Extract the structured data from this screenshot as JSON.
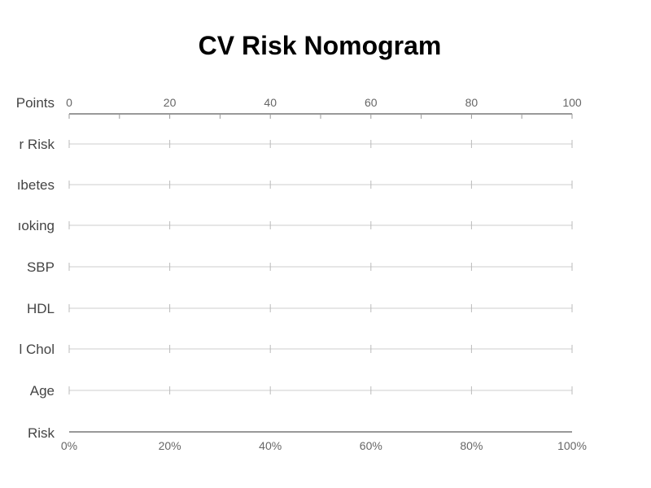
{
  "chart_data": {
    "type": "nomogram",
    "title": "CV Risk Nomogram",
    "points_scale": {
      "label": "Points",
      "range": [
        0,
        100
      ],
      "major_ticks": [
        0,
        20,
        40,
        60,
        80,
        100
      ],
      "minor_tick_step": 10
    },
    "predictors": [
      {
        "label": "r Risk",
        "range": [
          0,
          100
        ]
      },
      {
        "label": "ıbetes",
        "range": [
          0,
          100
        ]
      },
      {
        "label": "ıoking",
        "range": [
          0,
          100
        ]
      },
      {
        "label": "SBP",
        "range": [
          0,
          100
        ]
      },
      {
        "label": "HDL",
        "range": [
          0,
          100
        ]
      },
      {
        "label": "l Chol",
        "range": [
          0,
          100
        ]
      },
      {
        "label": "Age",
        "range": [
          0,
          100
        ]
      }
    ],
    "risk_scale": {
      "label": "Risk",
      "range": [
        0,
        100
      ],
      "major_ticks": [
        0,
        20,
        40,
        60,
        80,
        100
      ],
      "tick_labels": [
        "0%",
        "20%",
        "40%",
        "60%",
        "80%",
        "100%"
      ]
    },
    "colors": {
      "axis": "#999999",
      "row_line": "#cccccc",
      "tick": "#bbbbbb",
      "label": "#444444",
      "tick_label": "#666666"
    }
  }
}
